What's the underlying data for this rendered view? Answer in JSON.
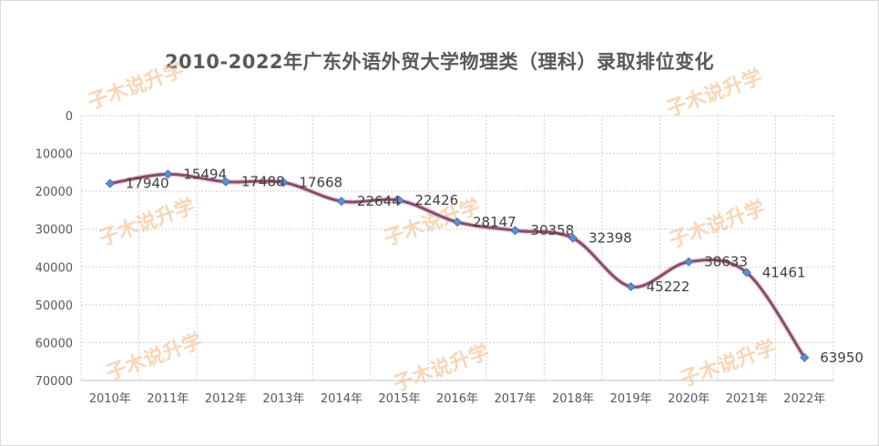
{
  "chart_data": {
    "type": "line",
    "title": "2010-2022年广东外语外贸大学物理类（理科）录取排位变化",
    "categories": [
      "2010年",
      "2011年",
      "2012年",
      "2013年",
      "2014年",
      "2015年",
      "2016年",
      "2017年",
      "2018年",
      "2019年",
      "2020年",
      "2021年",
      "2022年"
    ],
    "series": [
      {
        "values": [
          17940,
          15494,
          17488,
          17668,
          22644,
          22426,
          28147,
          30358,
          32398,
          45222,
          38633,
          41461,
          63950
        ]
      }
    ],
    "ylim": [
      0,
      70000
    ],
    "y_reversed": true,
    "yticks": [
      "0",
      "10000",
      "20000",
      "30000",
      "40000",
      "50000",
      "60000",
      "70000"
    ],
    "grid": true,
    "line_color": "#8b4a6b",
    "marker_color": "#5b8fd1",
    "legend": "none"
  },
  "watermark": "子木说升学"
}
